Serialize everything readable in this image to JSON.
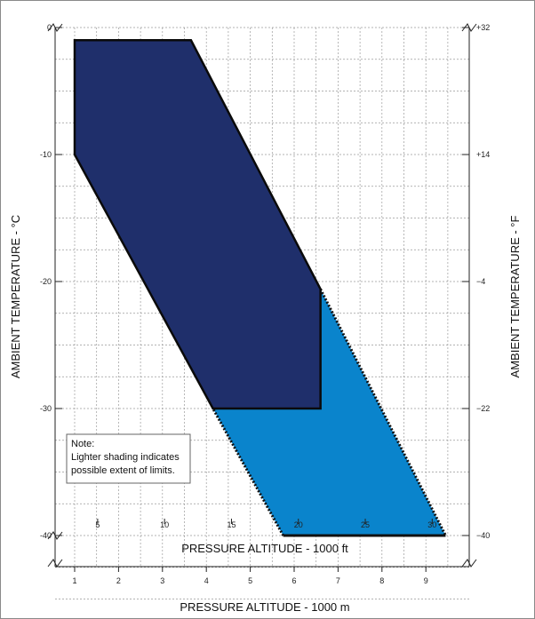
{
  "chart_data": {
    "type": "area",
    "x_axis_top": {
      "label": "PRESSURE ALTITUDE - 1000 ft",
      "ticks": [
        5,
        10,
        15,
        20,
        25,
        30
      ],
      "tick_labels": [
        "5",
        "10",
        "15",
        "20",
        "25",
        "30"
      ]
    },
    "x_axis_bottom": {
      "label": "PRESSURE ALTITUDE - 1000 m",
      "ticks": [
        1,
        2,
        3,
        4,
        5,
        6,
        7,
        8,
        9
      ],
      "tick_labels": [
        "1",
        "2",
        "3",
        "4",
        "5",
        "6",
        "7",
        "8",
        "9"
      ],
      "xlim": [
        1,
        9.5
      ]
    },
    "y_axis_left": {
      "label": "AMBIENT TEMPERATURE - °C",
      "ticks": [
        0,
        -10,
        -20,
        -30,
        -40
      ],
      "tick_labels": [
        "0",
        "-10",
        "-20",
        "-30",
        "-40"
      ],
      "ylim": [
        -48,
        0
      ]
    },
    "y_axis_right": {
      "label": "AMBIENT TEMPERATURE - °F",
      "ticks": [
        0,
        -10,
        -20,
        -30,
        -40
      ],
      "tick_labels": [
        "+32",
        "+14",
        "−4",
        "−22",
        "−40"
      ]
    },
    "grid": true,
    "series": [
      {
        "kind": "solid",
        "color": "#1f2f6b",
        "points": [
          [
            1.0,
            -1.0
          ],
          [
            3.65,
            -1.0
          ],
          [
            6.6,
            -20.6
          ],
          [
            6.6,
            -30.0
          ],
          [
            4.15,
            -30.0
          ],
          [
            1.0,
            -10.0
          ]
        ]
      },
      {
        "kind": "dotted-edge",
        "color": "#0a84cc",
        "points": [
          [
            6.6,
            -20.6
          ],
          [
            9.45,
            -40.0
          ],
          [
            5.75,
            -40.0
          ],
          [
            4.15,
            -30.0
          ],
          [
            6.6,
            -30.0
          ]
        ]
      }
    ],
    "annotations": [
      {
        "line1": "Note:",
        "line2": "Lighter shading indicates",
        "line3": "possible extent of limits."
      }
    ]
  }
}
